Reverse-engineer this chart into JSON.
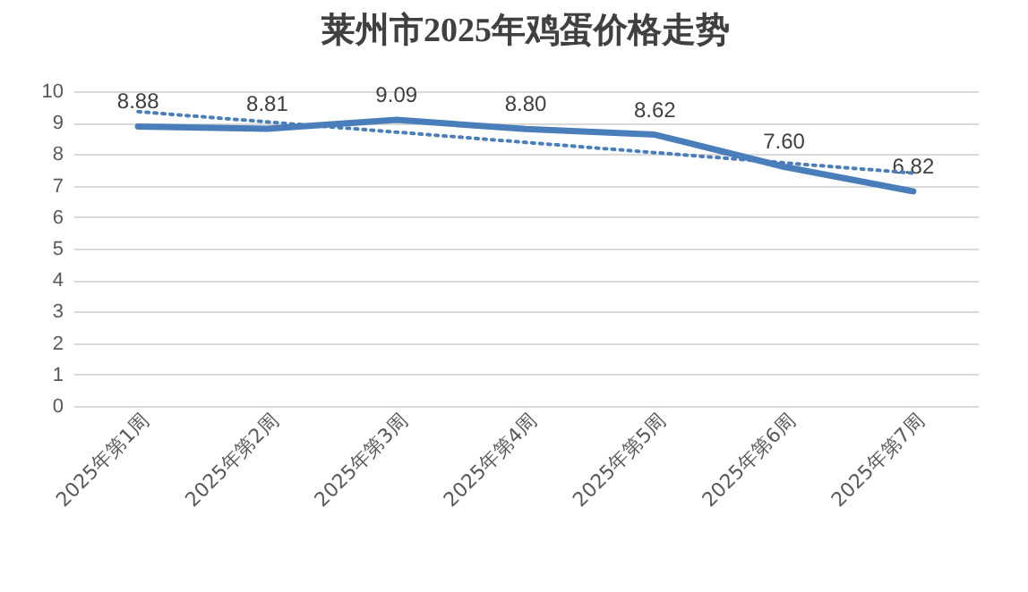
{
  "chart_data": {
    "type": "line",
    "title": "莱州市2025年鸡蛋价格走势",
    "categories": [
      "2025年第1周",
      "2025年第2周",
      "2025年第3周",
      "2025年第4周",
      "2025年第5周",
      "2025年第6周",
      "2025年第7周"
    ],
    "series": [
      {
        "color": "#4a7ebb",
        "line_style": "solid",
        "values": [
          8.88,
          8.81,
          9.09,
          8.8,
          8.62,
          7.6,
          6.82
        ],
        "value_labels": [
          "8.88",
          "8.81",
          "9.09",
          "8.80",
          "8.62",
          "7.60",
          "6.82"
        ]
      },
      {
        "type": "line",
        "color": "#4a7ebb",
        "line_style": "dotted",
        "x": [
          "2025年第1周",
          "2025年第7周"
        ],
        "values": [
          9.35,
          7.4
        ]
      }
    ],
    "ylim": [
      0,
      10
    ],
    "yticks": [
      0,
      1,
      2,
      3,
      4,
      5,
      6,
      7,
      8,
      9,
      10
    ],
    "grid": "y",
    "marker": "none"
  }
}
